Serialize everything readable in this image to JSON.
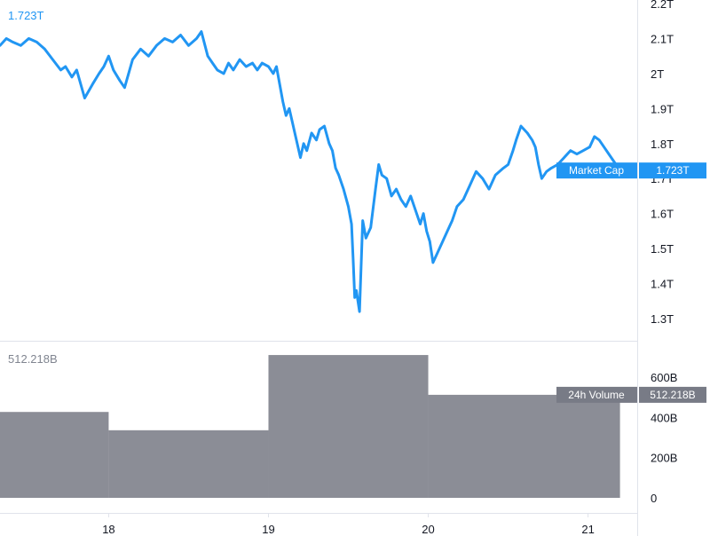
{
  "colors": {
    "line": "#2196f3",
    "volume": "#8b8d96",
    "volume_tag": "#787b86",
    "axis_text": "#131722",
    "divider": "#e0e3eb",
    "legend_volume_text": "#808590"
  },
  "chart_data": [
    {
      "type": "line",
      "name": "market-cap",
      "legend_value": "1.723T",
      "last_value_tag": "1.723T",
      "series_label": "Market Cap",
      "x_tick_labels": [
        "18",
        "19",
        "20",
        "21"
      ],
      "x_ticks": [
        18,
        19,
        20,
        21
      ],
      "xlim": [
        17.32,
        21.33
      ],
      "y_tick_labels": [
        "2.2T",
        "2.1T",
        "2T",
        "1.9T",
        "1.8T",
        "1.7T",
        "1.6T",
        "1.5T",
        "1.4T",
        "1.3T"
      ],
      "y_ticks": [
        2.2,
        2.1,
        2.0,
        1.9,
        1.8,
        1.7,
        1.6,
        1.5,
        1.4,
        1.3
      ],
      "ylim": [
        1.245,
        2.22
      ],
      "y_unit": "T",
      "x": [
        17.32,
        17.36,
        17.4,
        17.45,
        17.5,
        17.55,
        17.6,
        17.65,
        17.7,
        17.73,
        17.77,
        17.8,
        17.85,
        17.9,
        17.94,
        17.97,
        18.0,
        18.03,
        18.07,
        18.1,
        18.15,
        18.2,
        18.25,
        18.3,
        18.35,
        18.4,
        18.45,
        18.5,
        18.55,
        18.58,
        18.62,
        18.65,
        18.68,
        18.72,
        18.75,
        18.78,
        18.82,
        18.86,
        18.9,
        18.93,
        18.96,
        19.0,
        19.03,
        19.05,
        19.07,
        19.09,
        19.11,
        19.13,
        19.15,
        19.17,
        19.2,
        19.22,
        19.24,
        19.27,
        19.3,
        19.32,
        19.35,
        19.38,
        19.4,
        19.42,
        19.44,
        19.47,
        19.5,
        19.52,
        19.53,
        19.54,
        19.55,
        19.57,
        19.59,
        19.61,
        19.64,
        19.67,
        19.69,
        19.71,
        19.74,
        19.77,
        19.8,
        19.83,
        19.86,
        19.89,
        19.92,
        19.95,
        19.97,
        19.99,
        20.01,
        20.03,
        20.06,
        20.09,
        20.12,
        20.15,
        20.18,
        20.22,
        20.26,
        20.3,
        20.34,
        20.38,
        20.42,
        20.47,
        20.5,
        20.53,
        20.55,
        20.58,
        20.62,
        20.65,
        20.67,
        20.69,
        20.71,
        20.74,
        20.77,
        20.81,
        20.85,
        20.89,
        20.93,
        20.97,
        21.01,
        21.04,
        21.07,
        21.1,
        21.13,
        21.16,
        21.2
      ],
      "y": [
        2.08,
        2.1,
        2.09,
        2.08,
        2.1,
        2.09,
        2.07,
        2.04,
        2.01,
        2.02,
        1.99,
        2.01,
        1.93,
        1.97,
        2.0,
        2.02,
        2.05,
        2.01,
        1.98,
        1.96,
        2.04,
        2.07,
        2.05,
        2.08,
        2.1,
        2.09,
        2.11,
        2.08,
        2.1,
        2.12,
        2.05,
        2.03,
        2.01,
        2.0,
        2.03,
        2.01,
        2.04,
        2.02,
        2.03,
        2.01,
        2.03,
        2.02,
        2.0,
        2.02,
        1.97,
        1.92,
        1.88,
        1.9,
        1.86,
        1.82,
        1.76,
        1.8,
        1.78,
        1.83,
        1.81,
        1.84,
        1.85,
        1.8,
        1.78,
        1.73,
        1.71,
        1.67,
        1.62,
        1.57,
        1.47,
        1.36,
        1.38,
        1.32,
        1.58,
        1.53,
        1.56,
        1.67,
        1.74,
        1.71,
        1.7,
        1.65,
        1.67,
        1.64,
        1.62,
        1.65,
        1.61,
        1.57,
        1.6,
        1.55,
        1.52,
        1.46,
        1.49,
        1.52,
        1.55,
        1.58,
        1.62,
        1.64,
        1.68,
        1.72,
        1.7,
        1.67,
        1.71,
        1.73,
        1.74,
        1.78,
        1.81,
        1.85,
        1.83,
        1.81,
        1.79,
        1.74,
        1.7,
        1.72,
        1.73,
        1.74,
        1.76,
        1.78,
        1.77,
        1.78,
        1.79,
        1.82,
        1.81,
        1.79,
        1.77,
        1.75,
        1.723
      ]
    },
    {
      "type": "bar",
      "name": "volume",
      "legend_value": "512.218B",
      "last_value_tag": "512.218B",
      "series_label": "24h Volume",
      "y_tick_labels": [
        "600B",
        "400B",
        "200B",
        "0"
      ],
      "y_ticks": [
        600,
        400,
        200,
        0
      ],
      "ylim": [
        0,
        735
      ],
      "y_unit": "B",
      "bars": [
        {
          "start": 17.32,
          "end": 18.0,
          "value": 427
        },
        {
          "start": 18.0,
          "end": 19.0,
          "value": 336
        },
        {
          "start": 19.0,
          "end": 20.0,
          "value": 710
        },
        {
          "start": 20.0,
          "end": 21.2,
          "value": 512.218
        }
      ]
    }
  ]
}
